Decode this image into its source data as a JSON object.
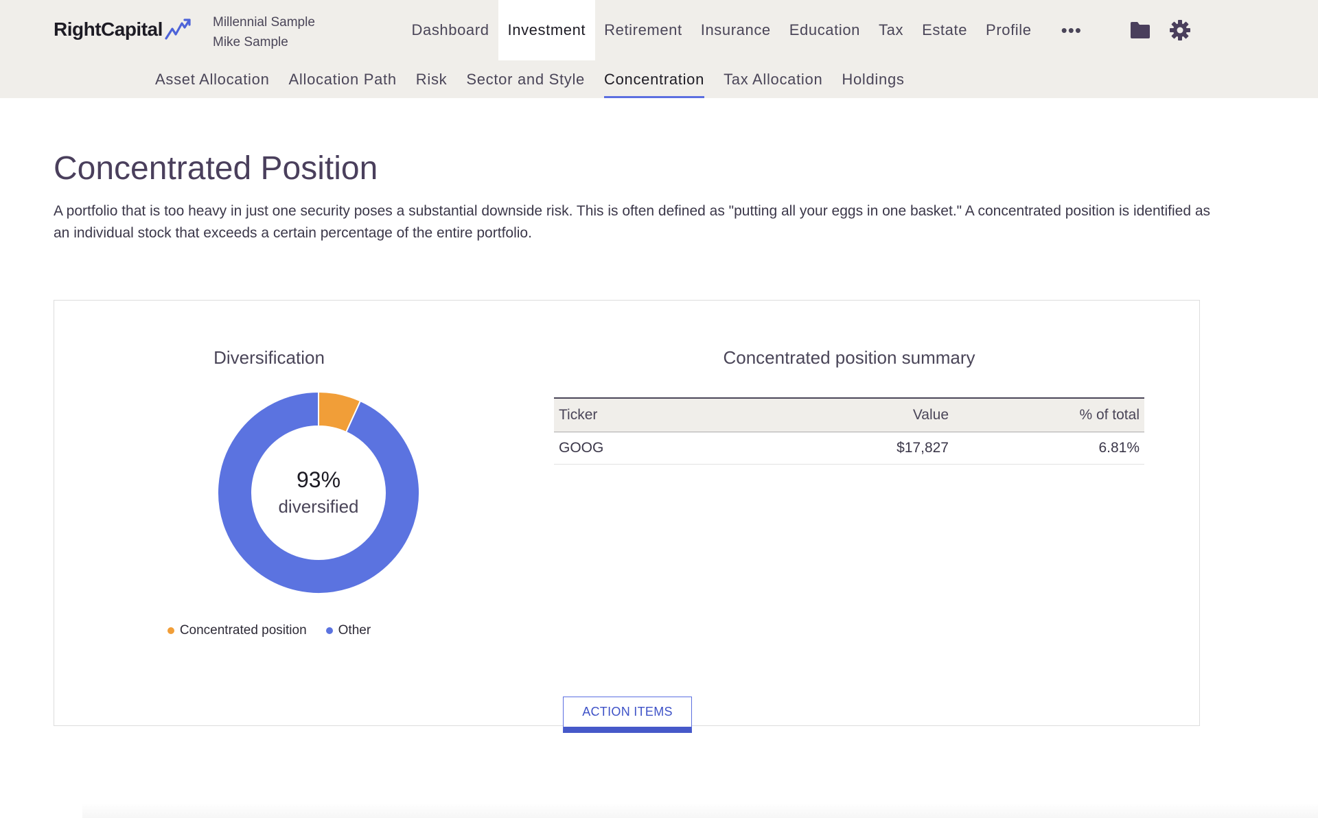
{
  "brand": {
    "logo_text": "RightCapital"
  },
  "client": {
    "household": "Millennial Sample",
    "person": "Mike Sample"
  },
  "main_nav": {
    "items": [
      {
        "label": "Dashboard"
      },
      {
        "label": "Investment"
      },
      {
        "label": "Retirement"
      },
      {
        "label": "Insurance"
      },
      {
        "label": "Education"
      },
      {
        "label": "Tax"
      },
      {
        "label": "Estate"
      },
      {
        "label": "Profile"
      }
    ],
    "more": "•••",
    "active": "Investment",
    "icons": [
      "more-icon",
      "folder-icon",
      "gear-icon"
    ]
  },
  "sub_nav": {
    "items": [
      {
        "label": "Asset Allocation"
      },
      {
        "label": "Allocation Path"
      },
      {
        "label": "Risk"
      },
      {
        "label": "Sector and Style"
      },
      {
        "label": "Concentration"
      },
      {
        "label": "Tax Allocation"
      },
      {
        "label": "Holdings"
      }
    ],
    "active": "Concentration"
  },
  "page": {
    "title": "Concentrated Position",
    "description": "A portfolio that is too heavy in just one security poses a substantial downside risk. This is often defined as \"putting all your eggs in one basket.\" A concentrated position is identified as an individual stock that exceeds a certain percentage of the entire portfolio."
  },
  "diversification": {
    "title": "Diversification",
    "center_value": "93%",
    "center_label": "diversified",
    "legend": [
      {
        "label": "Concentrated position"
      },
      {
        "label": "Other"
      }
    ]
  },
  "chart_data": {
    "type": "pie",
    "title": "Diversification",
    "categories": [
      "Concentrated position",
      "Other"
    ],
    "values": [
      6.81,
      93.19
    ],
    "colors": [
      "#f19e38",
      "#5b73e0"
    ],
    "legend": "bottom"
  },
  "summary": {
    "title": "Concentrated position summary",
    "columns": [
      "Ticker",
      "Value",
      "% of total"
    ],
    "rows": [
      [
        "GOOG",
        "$17,827",
        "6.81%"
      ]
    ]
  },
  "actions": {
    "action_items_label": "ACTION ITEMS"
  },
  "colors": {
    "accent": "#5b6ee0",
    "concentrated": "#f19e38",
    "other": "#5b73e0",
    "nav_bg": "#f0eeea"
  }
}
